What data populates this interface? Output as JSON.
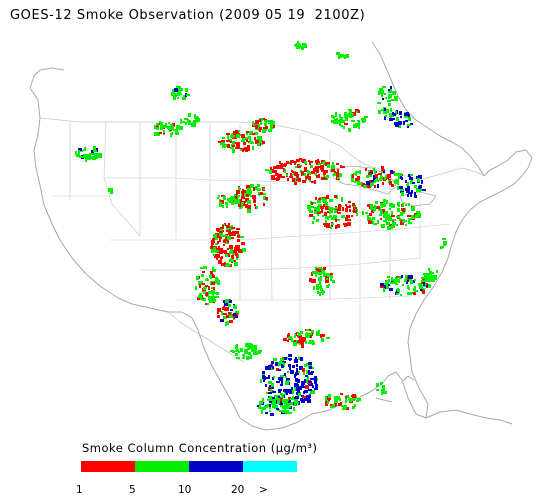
{
  "title": "GOES-12 Smoke Observation (2009 05 19  2100Z)",
  "legend": {
    "title": "Smoke Column Concentration (μg/m³)",
    "classes": [
      {
        "color": "#ff0000",
        "from": "1",
        "to": "5"
      },
      {
        "color": "#00ee00",
        "from": "5",
        "to": "10"
      },
      {
        "color": "#0000cc",
        "from": "10",
        "to": "20"
      },
      {
        "color": "#00ffff",
        "from": "20",
        "to": ">"
      }
    ],
    "ticks": [
      "1",
      "5",
      "10",
      "20",
      ">"
    ]
  },
  "colors": {
    "coastline": "#a8a8a8",
    "borders": "#c8c8c8",
    "low": "#ff0000",
    "medium": "#00ee00",
    "high": "#0000cc",
    "very_high": "#00ffff"
  }
}
